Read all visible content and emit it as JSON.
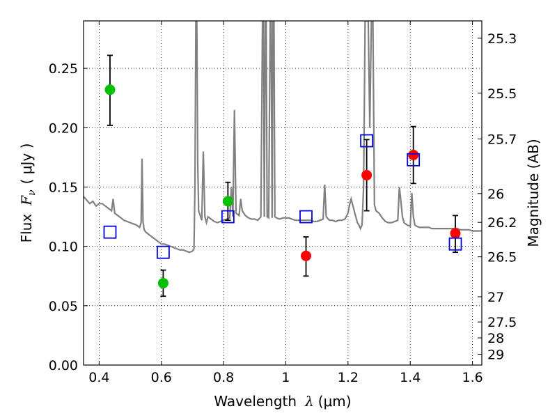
{
  "chart_data": {
    "type": "scatter",
    "title": "",
    "xlabel": "Wavelength",
    "xlabel_symbol": "λ",
    "xlabel_unit": "(μm)",
    "ylabel": "Flux",
    "ylabel_symbol": "F",
    "ylabel_subscript": "ν",
    "ylabel_unit": "( μJy )",
    "ylabel_right": "Magnitude (AB)",
    "xlim": [
      0.35,
      1.63
    ],
    "ylim": [
      0.0,
      0.29
    ],
    "grid": true,
    "grid_style": "dotted",
    "x_ticks": [
      0.4,
      0.6,
      0.8,
      1.0,
      1.2,
      1.4,
      1.6
    ],
    "x_tick_labels": [
      "0.4",
      "0.6",
      "0.8",
      "1",
      "1.2",
      "1.4",
      "1.6"
    ],
    "y_ticks": [
      0.0,
      0.05,
      0.1,
      0.15,
      0.2,
      0.25
    ],
    "y_tick_labels": [
      "0.00",
      "0.05",
      "0.10",
      "0.15",
      "0.20",
      "0.25"
    ],
    "right_ticks": [
      "25.3",
      "25.5",
      "25.7",
      "26",
      "26.2",
      "26.5",
      "27",
      "27.5",
      "28",
      "29"
    ],
    "model_spectrum": {
      "color": "#808080",
      "x": [
        0.35,
        0.36,
        0.37,
        0.38,
        0.39,
        0.4,
        0.41,
        0.42,
        0.43,
        0.44,
        0.445,
        0.45,
        0.46,
        0.47,
        0.48,
        0.49,
        0.5,
        0.51,
        0.52,
        0.53,
        0.535,
        0.538,
        0.541,
        0.545,
        0.55,
        0.56,
        0.57,
        0.58,
        0.59,
        0.6,
        0.61,
        0.62,
        0.63,
        0.64,
        0.65,
        0.66,
        0.67,
        0.68,
        0.69,
        0.7,
        0.705,
        0.708,
        0.711,
        0.714,
        0.717,
        0.72,
        0.73,
        0.735,
        0.74,
        0.745,
        0.75,
        0.76,
        0.77,
        0.78,
        0.79,
        0.8,
        0.81,
        0.82,
        0.825,
        0.83,
        0.835,
        0.84,
        0.85,
        0.855,
        0.86,
        0.87,
        0.88,
        0.89,
        0.9,
        0.91,
        0.92,
        0.925,
        0.928,
        0.931,
        0.934,
        0.937,
        0.94,
        0.945,
        0.95,
        0.953,
        0.956,
        0.959,
        0.962,
        0.965,
        0.97,
        0.98,
        0.99,
        1.0,
        1.01,
        1.02,
        1.03,
        1.04,
        1.05,
        1.06,
        1.07,
        1.08,
        1.09,
        1.1,
        1.11,
        1.12,
        1.125,
        1.13,
        1.14,
        1.15,
        1.16,
        1.17,
        1.18,
        1.19,
        1.2,
        1.205,
        1.21,
        1.215,
        1.22,
        1.225,
        1.23,
        1.235,
        1.24,
        1.245,
        1.25,
        1.255,
        1.26,
        1.265,
        1.27,
        1.275,
        1.28,
        1.285,
        1.29,
        1.3,
        1.31,
        1.32,
        1.33,
        1.34,
        1.35,
        1.36,
        1.365,
        1.37,
        1.375,
        1.38,
        1.39,
        1.4,
        1.405,
        1.41,
        1.415,
        1.42,
        1.43,
        1.44,
        1.45,
        1.46,
        1.47,
        1.48,
        1.49,
        1.5,
        1.51,
        1.52,
        1.53,
        1.54,
        1.55,
        1.56,
        1.57,
        1.58,
        1.59,
        1.6,
        1.61,
        1.62,
        1.63
      ],
      "y": [
        0.142,
        0.139,
        0.136,
        0.138,
        0.134,
        0.136,
        0.136,
        0.134,
        0.132,
        0.13,
        0.14,
        0.128,
        0.126,
        0.124,
        0.122,
        0.121,
        0.12,
        0.119,
        0.118,
        0.116,
        0.12,
        0.174,
        0.121,
        0.114,
        0.112,
        0.11,
        0.108,
        0.106,
        0.104,
        0.102,
        0.102,
        0.101,
        0.1,
        0.099,
        0.098,
        0.097,
        0.097,
        0.096,
        0.095,
        0.096,
        0.098,
        0.15,
        0.29,
        0.29,
        0.17,
        0.13,
        0.122,
        0.18,
        0.125,
        0.12,
        0.125,
        0.123,
        0.121,
        0.12,
        0.121,
        0.122,
        0.123,
        0.124,
        0.15,
        0.125,
        0.215,
        0.128,
        0.126,
        0.14,
        0.13,
        0.126,
        0.124,
        0.123,
        0.123,
        0.122,
        0.125,
        0.29,
        0.29,
        0.125,
        0.29,
        0.29,
        0.125,
        0.124,
        0.29,
        0.29,
        0.124,
        0.29,
        0.29,
        0.125,
        0.124,
        0.123,
        0.124,
        0.124,
        0.124,
        0.123,
        0.122,
        0.122,
        0.122,
        0.122,
        0.122,
        0.122,
        0.121,
        0.121,
        0.122,
        0.123,
        0.152,
        0.125,
        0.122,
        0.122,
        0.121,
        0.122,
        0.122,
        0.123,
        0.128,
        0.135,
        0.14,
        0.135,
        0.13,
        0.125,
        0.12,
        0.118,
        0.115,
        0.118,
        0.15,
        0.29,
        0.29,
        0.29,
        0.2,
        0.29,
        0.29,
        0.135,
        0.13,
        0.128,
        0.124,
        0.121,
        0.12,
        0.12,
        0.121,
        0.122,
        0.15,
        0.138,
        0.125,
        0.12,
        0.118,
        0.117,
        0.145,
        0.125,
        0.118,
        0.117,
        0.116,
        0.116,
        0.116,
        0.116,
        0.115,
        0.115,
        0.115,
        0.115,
        0.115,
        0.115,
        0.115,
        0.115,
        0.115,
        0.114,
        0.114,
        0.114,
        0.114,
        0.113,
        0.113,
        0.113,
        0.113
      ]
    },
    "series": [
      {
        "marker": "filled-circle",
        "color": "#00c000",
        "points": [
          {
            "x": 0.435,
            "y": 0.232,
            "yerr_low": 0.03,
            "yerr_high": 0.029
          },
          {
            "x": 0.606,
            "y": 0.069,
            "yerr_low": 0.011,
            "yerr_high": 0.011
          },
          {
            "x": 0.814,
            "y": 0.138,
            "yerr_low": 0.016,
            "yerr_high": 0.016
          }
        ]
      },
      {
        "marker": "filled-circle",
        "color": "#ff0000",
        "points": [
          {
            "x": 1.065,
            "y": 0.092,
            "yerr_low": 0.017,
            "yerr_high": 0.016
          },
          {
            "x": 1.26,
            "y": 0.16,
            "yerr_low": 0.03,
            "yerr_high": 0.03
          },
          {
            "x": 1.41,
            "y": 0.177,
            "yerr_low": 0.024,
            "yerr_high": 0.024
          },
          {
            "x": 1.545,
            "y": 0.111,
            "yerr_low": 0.016,
            "yerr_high": 0.015
          }
        ]
      },
      {
        "marker": "open-square",
        "color": "#0000dd",
        "points": [
          {
            "x": 0.435,
            "y": 0.112
          },
          {
            "x": 0.606,
            "y": 0.095
          },
          {
            "x": 0.814,
            "y": 0.125
          },
          {
            "x": 1.065,
            "y": 0.125
          },
          {
            "x": 1.26,
            "y": 0.189
          },
          {
            "x": 1.41,
            "y": 0.173
          },
          {
            "x": 1.545,
            "y": 0.102
          }
        ]
      }
    ]
  }
}
